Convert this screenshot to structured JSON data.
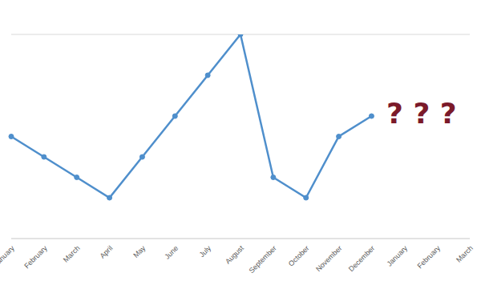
{
  "chart_data": {
    "type": "line",
    "categories": [
      "January",
      "February",
      "March",
      "April",
      "May",
      "June",
      "July",
      "August",
      "September",
      "October",
      "November",
      "December",
      "January",
      "February",
      "March"
    ],
    "values": [
      2.5,
      2,
      1.5,
      1,
      2,
      3,
      4,
      5,
      1.5,
      1,
      2.5,
      3,
      null,
      null,
      null
    ],
    "color": "#4f8fcc",
    "marker": "circle",
    "ylim": [
      0,
      5
    ],
    "yticks": [
      0,
      1,
      2,
      3,
      4,
      5
    ],
    "grid": true,
    "tick_labels": "x",
    "annotation": "? ? ?"
  }
}
